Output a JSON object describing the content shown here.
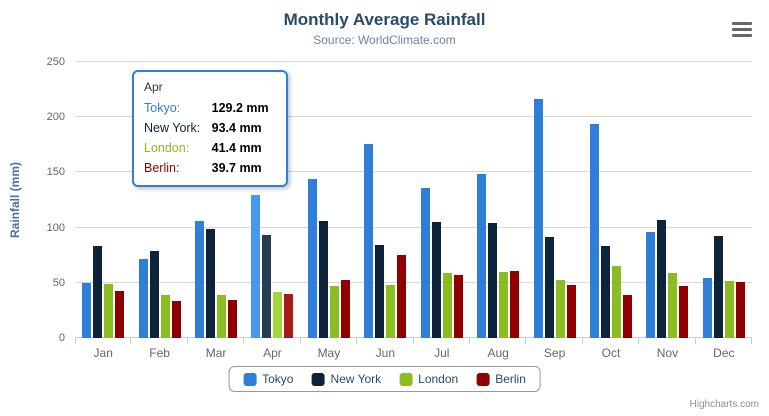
{
  "chart_data": {
    "type": "bar",
    "title": "Monthly Average Rainfall",
    "subtitle": "Source: WorldClimate.com",
    "xlabel": "",
    "ylabel": "Rainfall (mm)",
    "ylim": [
      0,
      250
    ],
    "yticks": [
      0,
      50,
      100,
      150,
      200,
      250
    ],
    "grid": true,
    "legend_position": "bottom",
    "categories": [
      "Jan",
      "Feb",
      "Mar",
      "Apr",
      "May",
      "Jun",
      "Jul",
      "Aug",
      "Sep",
      "Oct",
      "Nov",
      "Dec"
    ],
    "series": [
      {
        "name": "Tokyo",
        "color": "#2f7ed8",
        "values": [
          49.9,
          71.5,
          106.4,
          129.2,
          144.0,
          176.0,
          135.6,
          148.5,
          216.4,
          194.1,
          95.6,
          54.4
        ]
      },
      {
        "name": "New York",
        "color": "#0d233a",
        "values": [
          83.6,
          78.8,
          98.5,
          93.4,
          106.0,
          84.5,
          105.0,
          104.3,
          91.2,
          83.5,
          106.6,
          92.3
        ]
      },
      {
        "name": "London",
        "color": "#8bbc21",
        "values": [
          48.9,
          38.8,
          39.3,
          41.4,
          47.0,
          48.3,
          59.0,
          59.6,
          52.4,
          65.2,
          59.3,
          51.2
        ]
      },
      {
        "name": "Berlin",
        "color": "#910000",
        "values": [
          42.4,
          33.2,
          34.5,
          39.7,
          52.6,
          75.5,
          57.4,
          60.4,
          47.6,
          39.1,
          46.8,
          51.1
        ]
      }
    ]
  },
  "tooltip": {
    "category": "Apr",
    "rows": [
      {
        "label": "Tokyo:",
        "value": "129.2 mm",
        "color": "#2f7ed8"
      },
      {
        "label": "New York:",
        "value": "93.4 mm",
        "color": "#0d233a"
      },
      {
        "label": "London:",
        "value": "41.4 mm",
        "color": "#8bbc21"
      },
      {
        "label": "Berlin:",
        "value": "39.7 mm",
        "color": "#910000"
      }
    ]
  },
  "icons": {
    "export_menu": "hamburger"
  },
  "colors": {
    "title": "#274b6d",
    "subtitle": "#6d869f",
    "axis_title": "#4572a7",
    "axis_labels": "#666666",
    "gridline": "#d8d8d8",
    "axis_line": "#c0d0e0",
    "tooltip_border": "#2f7ed8"
  },
  "credits": "Highcharts.com"
}
